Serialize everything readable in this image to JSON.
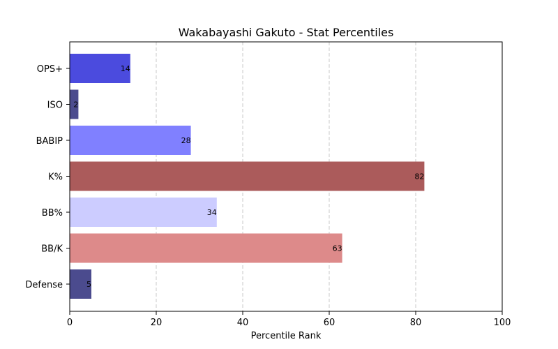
{
  "chart_data": {
    "type": "bar",
    "orientation": "horizontal",
    "title": "Wakabayashi Gakuto - Stat Percentiles",
    "xlabel": "Percentile Rank",
    "ylabel": "",
    "xlim": [
      0,
      100
    ],
    "xticks": [
      0,
      20,
      40,
      60,
      80,
      100
    ],
    "grid": "x-dashed",
    "categories": [
      "OPS+",
      "ISO",
      "BABIP",
      "K%",
      "BB%",
      "BB/K",
      "Defense"
    ],
    "values": [
      14,
      2,
      28,
      82,
      34,
      63,
      5
    ],
    "colors": [
      "#4b4bde",
      "#4b4b8e",
      "#8080ff",
      "#ab5b5b",
      "#ccccff",
      "#dd8a8a",
      "#4b4b8e"
    ]
  }
}
